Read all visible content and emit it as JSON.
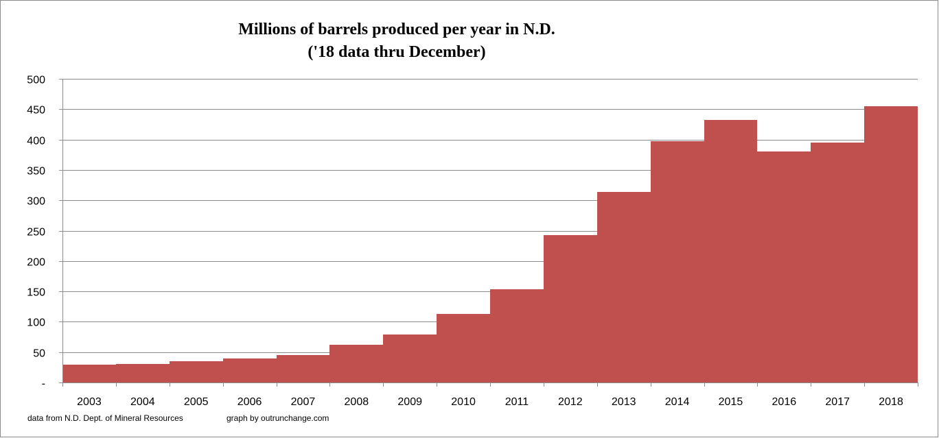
{
  "chart_data": {
    "type": "bar",
    "title": "Millions of barrels produced per year in N.D.",
    "subtitle": "('18 data thru December)",
    "categories": [
      "2003",
      "2004",
      "2005",
      "2006",
      "2007",
      "2008",
      "2009",
      "2010",
      "2011",
      "2012",
      "2013",
      "2014",
      "2015",
      "2016",
      "2017",
      "2018"
    ],
    "series": [
      {
        "name": "Millions of barrels",
        "values": [
          29,
          31,
          35,
          39,
          45,
          62,
          79,
          113,
          153,
          243,
          314,
          397,
          432,
          380,
          395,
          455
        ]
      }
    ],
    "xlabel": "",
    "ylabel": "",
    "ylim": [
      0,
      500
    ],
    "yticks": [
      0,
      50,
      100,
      150,
      200,
      250,
      300,
      350,
      400,
      450,
      500
    ],
    "ytick_labels": [
      "-",
      "50",
      "100",
      "150",
      "200",
      "250",
      "300",
      "350",
      "400",
      "450",
      "500"
    ],
    "grid": true,
    "legend": "none",
    "bar_gap": "none",
    "colors": {
      "bar": "#C0504D",
      "grid": "#8C8C8C",
      "axis": "#8C8C8C",
      "border": "#8C8C8C"
    }
  },
  "footer": {
    "source": "data from N.D. Dept. of Mineral Resources",
    "credit": "graph by outrunchange.com"
  }
}
